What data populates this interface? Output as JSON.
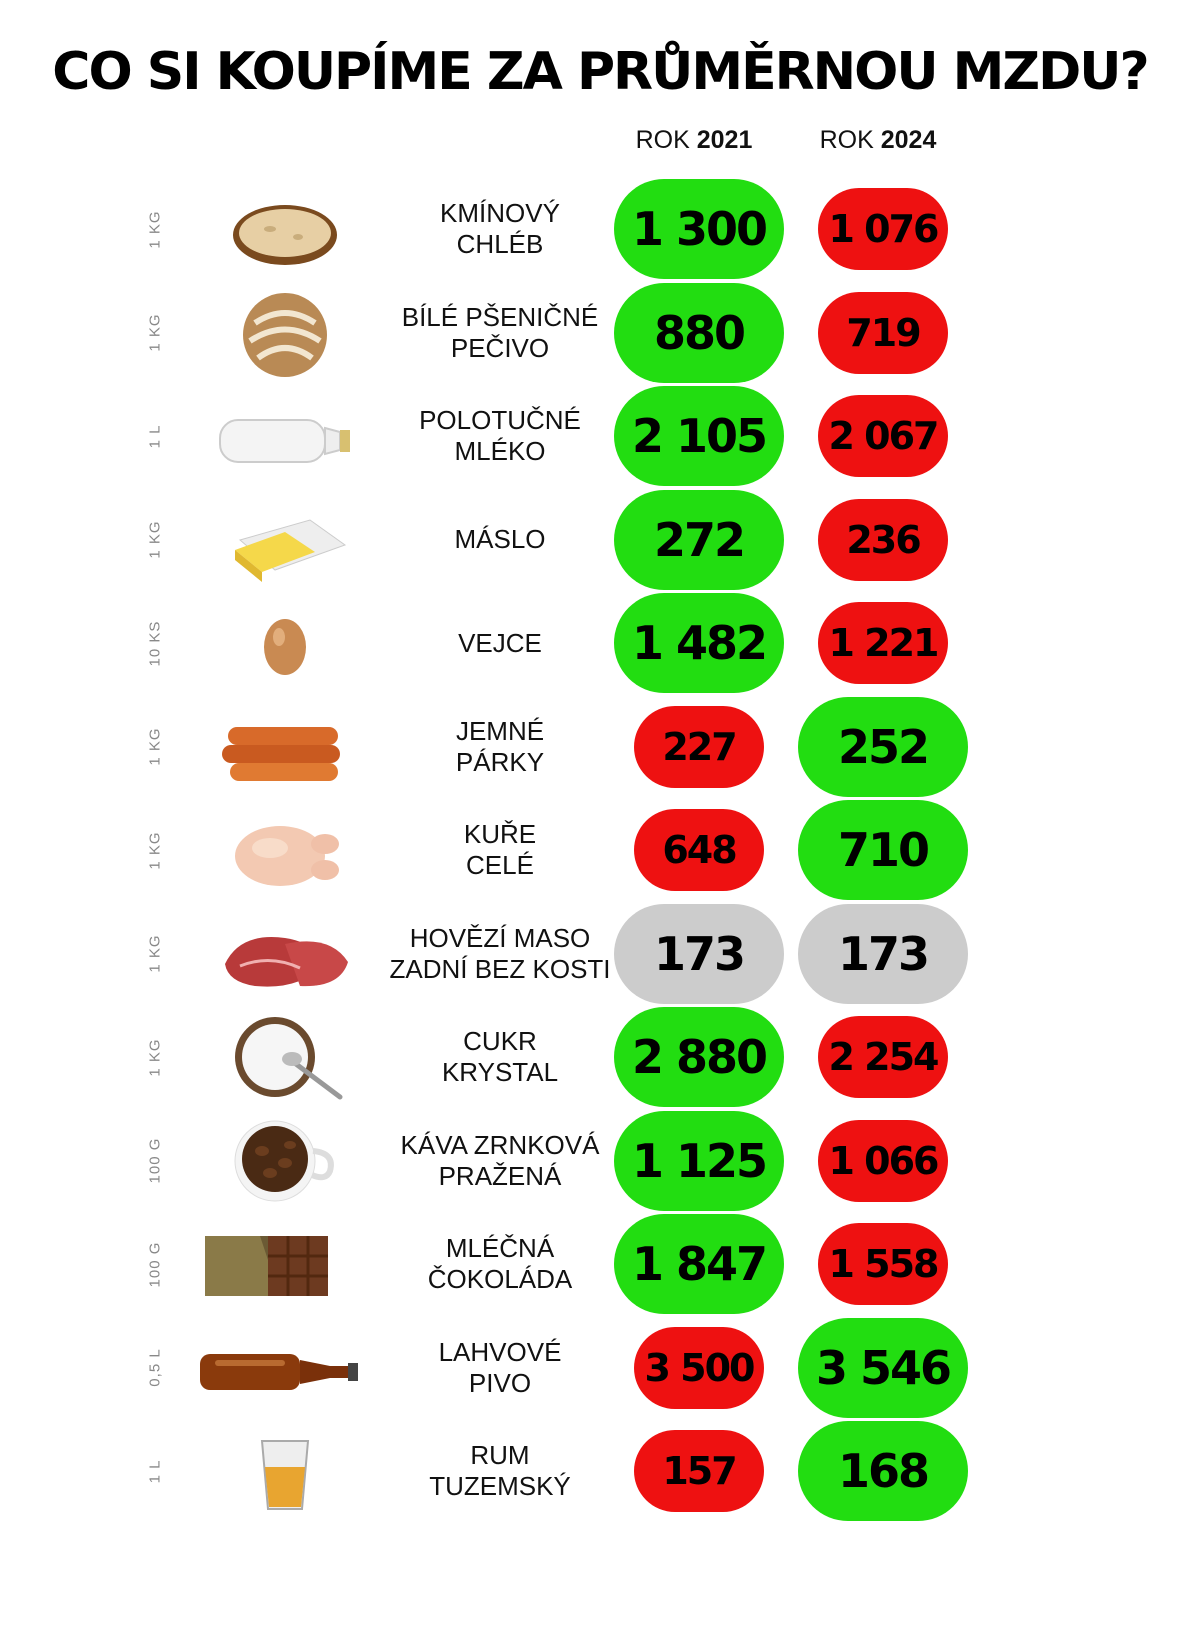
{
  "title": "CO SI KOUPÍME ZA PRŮMĚRNOU MZDU?",
  "columns": [
    {
      "prefix": "ROK ",
      "year": "2021"
    },
    {
      "prefix": "ROK ",
      "year": "2024"
    }
  ],
  "colors": {
    "higher": "#22dd11",
    "lower": "#ee1111",
    "equal": "#cccccc"
  },
  "chart_data": {
    "type": "table",
    "title": "CO SI KOUPÍME ZA PRŮMĚRNOU MZDU?",
    "series": [
      {
        "name": "ROK 2021",
        "values": [
          1300,
          880,
          2105,
          272,
          1482,
          227,
          648,
          173,
          2880,
          1125,
          1847,
          3500,
          157
        ]
      },
      {
        "name": "ROK 2024",
        "values": [
          1076,
          719,
          2067,
          236,
          1221,
          252,
          710,
          173,
          2254,
          1066,
          1558,
          3546,
          168
        ]
      }
    ],
    "rows": [
      {
        "unit": "1 KG",
        "icon": "bread-icon",
        "name": [
          "KMÍNOVÝ",
          "CHLÉB"
        ],
        "v2021": "1 300",
        "v2024": "1 076"
      },
      {
        "unit": "1 KG",
        "icon": "wheat-bread-icon",
        "name": [
          "BÍLÉ PŠENIČNÉ",
          "PEČIVO"
        ],
        "v2021": "880",
        "v2024": "719"
      },
      {
        "unit": "1 L",
        "icon": "milk-bottle-icon",
        "name": [
          "POLOTUČNÉ",
          "MLÉKO"
        ],
        "v2021": "2 105",
        "v2024": "2 067"
      },
      {
        "unit": "1 KG",
        "icon": "butter-icon",
        "name": [
          "MÁSLO"
        ],
        "v2021": "272",
        "v2024": "236"
      },
      {
        "unit": "10 KS",
        "icon": "egg-icon",
        "name": [
          "VEJCE"
        ],
        "v2021": "1 482",
        "v2024": "1 221"
      },
      {
        "unit": "1 KG",
        "icon": "sausages-icon",
        "name": [
          "JEMNÉ",
          "PÁRKY"
        ],
        "v2021": "227",
        "v2024": "252"
      },
      {
        "unit": "1 KG",
        "icon": "chicken-icon",
        "name": [
          "KUŘE",
          "CELÉ"
        ],
        "v2021": "648",
        "v2024": "710"
      },
      {
        "unit": "1 KG",
        "icon": "beef-icon",
        "name": [
          "HOVĚZÍ MASO",
          "ZADNÍ BEZ KOSTI"
        ],
        "v2021": "173",
        "v2024": "173"
      },
      {
        "unit": "1 KG",
        "icon": "sugar-bowl-icon",
        "name": [
          "CUKR",
          "KRYSTAL"
        ],
        "v2021": "2 880",
        "v2024": "2 254"
      },
      {
        "unit": "100 G",
        "icon": "coffee-beans-icon",
        "name": [
          "KÁVA ZRNKOVÁ",
          "PRAŽENÁ"
        ],
        "v2021": "1 125",
        "v2024": "1 066"
      },
      {
        "unit": "100 G",
        "icon": "chocolate-bar-icon",
        "name": [
          "MLÉČNÁ",
          "ČOKOLÁDA"
        ],
        "v2021": "1 847",
        "v2024": "1 558"
      },
      {
        "unit": "0,5 L",
        "icon": "beer-bottle-icon",
        "name": [
          "LAHVOVÉ",
          "PIVO"
        ],
        "v2021": "3 500",
        "v2024": "3 546"
      },
      {
        "unit": "1 L",
        "icon": "rum-glass-icon",
        "name": [
          "RUM",
          "TUZEMSKÝ"
        ],
        "v2021": "157",
        "v2024": "168"
      }
    ]
  }
}
